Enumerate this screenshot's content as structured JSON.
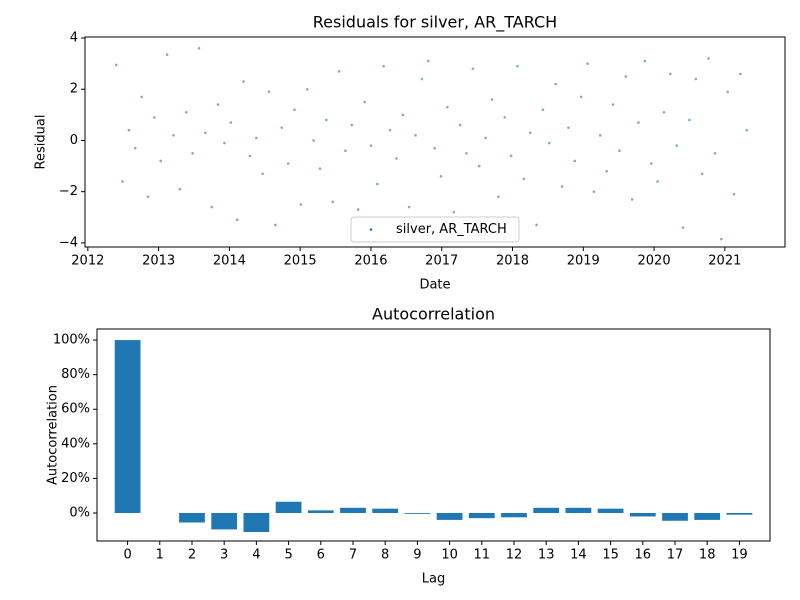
{
  "chart_data": [
    {
      "type": "scatter",
      "title": "Residuals for silver, AR_TARCH",
      "xlabel": "Date",
      "ylabel": "Residual",
      "x": [
        2012.4,
        2012.49,
        2012.58,
        2012.67,
        2012.76,
        2012.85,
        2012.94,
        2013.03,
        2013.12,
        2013.21,
        2013.3,
        2013.39,
        2013.48,
        2013.57,
        2013.66,
        2013.75,
        2013.84,
        2013.93,
        2014.02,
        2014.11,
        2014.2,
        2014.29,
        2014.38,
        2014.47,
        2014.56,
        2014.65,
        2014.74,
        2014.83,
        2014.92,
        2015.01,
        2015.1,
        2015.19,
        2015.28,
        2015.37,
        2015.46,
        2015.55,
        2015.64,
        2015.73,
        2015.82,
        2015.91,
        2016.0,
        2016.09,
        2016.18,
        2016.27,
        2016.36,
        2016.45,
        2016.54,
        2016.63,
        2016.72,
        2016.81,
        2016.9,
        2016.99,
        2017.08,
        2017.17,
        2017.26,
        2017.35,
        2017.44,
        2017.53,
        2017.62,
        2017.71,
        2017.8,
        2017.89,
        2017.98,
        2018.07,
        2018.16,
        2018.25,
        2018.34,
        2018.43,
        2018.52,
        2018.61,
        2018.7,
        2018.79,
        2018.88,
        2018.97,
        2019.06,
        2019.15,
        2019.24,
        2019.33,
        2019.42,
        2019.51,
        2019.6,
        2019.69,
        2019.78,
        2019.87,
        2019.96,
        2020.05,
        2020.14,
        2020.23,
        2020.32,
        2020.41,
        2020.5,
        2020.59,
        2020.68,
        2020.77,
        2020.86,
        2020.95,
        2021.04,
        2021.13,
        2021.22,
        2021.31
      ],
      "series": [
        {
          "name": "silver, AR_TARCH",
          "color": "#1f77b4",
          "values": [
            2.95,
            -1.6,
            0.4,
            -0.3,
            1.7,
            -2.2,
            0.9,
            -0.8,
            3.35,
            0.2,
            -1.9,
            1.1,
            -0.5,
            3.6,
            0.3,
            -2.6,
            1.4,
            -0.1,
            0.7,
            -3.1,
            2.3,
            -0.6,
            0.1,
            -1.3,
            1.9,
            -3.3,
            0.5,
            -0.9,
            1.2,
            -2.5,
            2,
            0,
            -1.1,
            0.8,
            -2.4,
            2.7,
            -0.4,
            0.6,
            -2.7,
            1.5,
            -0.2,
            -1.7,
            2.9,
            0.4,
            -0.7,
            1,
            -2.6,
            0.2,
            2.4,
            3.1,
            -0.3,
            -1.4,
            1.3,
            -2.8,
            0.6,
            -0.5,
            2.8,
            -1,
            0.1,
            1.6,
            -2.2,
            0.9,
            -0.6,
            2.9,
            -1.5,
            0.3,
            -3.3,
            1.2,
            -0.1,
            2.2,
            -1.8,
            0.5,
            -0.8,
            1.7,
            3,
            -2,
            0.2,
            -1.2,
            1.4,
            -0.4,
            2.5,
            -2.3,
            0.7,
            3.1,
            -0.9,
            -1.6,
            1.1,
            2.6,
            -0.2,
            -3.4,
            0.8,
            2.4,
            -1.3,
            3.2,
            -0.5,
            -3.85,
            1.9,
            -2.1,
            2.6,
            0.4
          ]
        }
      ],
      "xlim": [
        2011.96,
        2021.85
      ],
      "xticks": [
        2012,
        2013,
        2014,
        2015,
        2016,
        2017,
        2018,
        2019,
        2020,
        2021
      ],
      "ylim": [
        -4.16,
        4.04
      ],
      "yticks": [
        {
          "value": -4,
          "label": "−4"
        },
        {
          "value": -2,
          "label": "−2"
        },
        0,
        2,
        4
      ],
      "legend": "lower center",
      "grid": false
    },
    {
      "type": "bar",
      "title": "Autocorrelation",
      "xlabel": "Lag",
      "ylabel": "Autocorrelation",
      "categories": [
        0,
        1,
        2,
        3,
        4,
        5,
        6,
        7,
        8,
        9,
        10,
        11,
        12,
        13,
        14,
        15,
        16,
        17,
        18,
        19
      ],
      "values": [
        100,
        0,
        -5.5,
        -9.5,
        -11,
        6.5,
        1.5,
        3,
        2.5,
        -0.5,
        -4,
        -3,
        -2.5,
        3,
        3,
        2.5,
        -2,
        -4.5,
        -4,
        -1
      ],
      "color": "#1f77b4",
      "ylim": [
        -16.2,
        106.4
      ],
      "yticks": [
        {
          "value": 0,
          "label": "0%"
        },
        {
          "value": 20,
          "label": "20%"
        },
        {
          "value": 40,
          "label": "40%"
        },
        {
          "value": 60,
          "label": "60%"
        },
        {
          "value": 80,
          "label": "80%"
        },
        {
          "value": 100,
          "label": "100%"
        }
      ],
      "grid": false
    }
  ]
}
